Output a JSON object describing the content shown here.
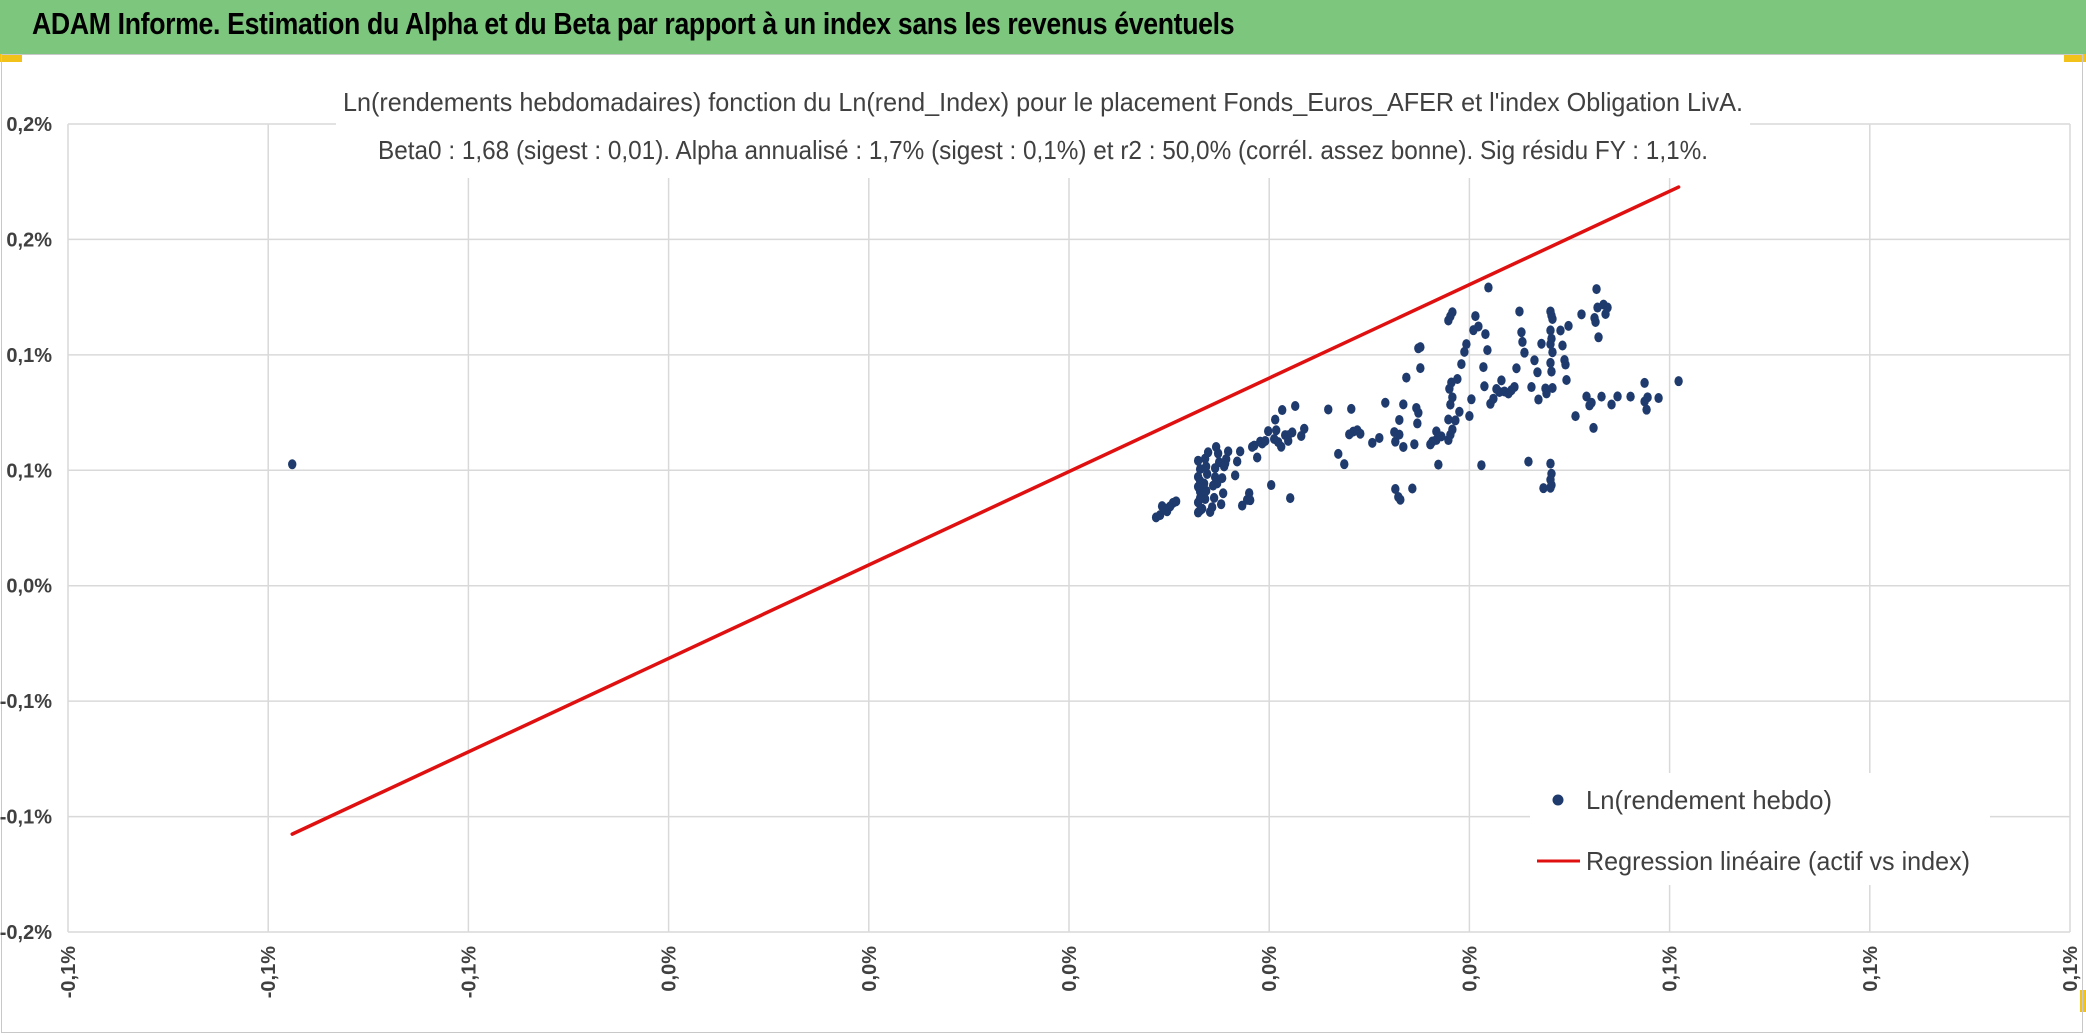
{
  "header": {
    "title": "ADAM Informe. Estimation du Alpha et du Beta par rapport à un index sans les revenus éventuels"
  },
  "colors": {
    "header_bg": "#7dc67e",
    "points": "#1f3b6e",
    "line": "#e01010",
    "grid": "#d9d9d9"
  },
  "chart_data": {
    "type": "scatter",
    "title": "Ln(rendements hebdomadaires) fonction du Ln(rend_Index) pour le placement Fonds_Euros_AFER et l'index Obligation LivA.",
    "subtitle": "Beta0 : 1,68 (sigest : 0,01). Alpha annualisé : 1,7% (sigest : 0,1%) et r2 : 50,0% (corrél. assez bonne). Sig résidu FY : 1,1%.",
    "xlabel": "",
    "ylabel": "",
    "xlim": [
      -0.1,
      0.1
    ],
    "ylim": [
      -0.3,
      0.4
    ],
    "x_tick_labels": [
      "-0,1%",
      "-0,1%",
      "-0,1%",
      "0,0%",
      "0,0%",
      "0,0%",
      "0,0%",
      "0,0%",
      "0,1%",
      "0,1%",
      "0,1%"
    ],
    "y_tick_labels": [
      "0,2%",
      "0,2%",
      "0,1%",
      "0,1%",
      "0,0%",
      "-0,1%",
      "-0,1%",
      "-0,2%"
    ],
    "grid": true,
    "legend_position": "bottom-right",
    "series": [
      {
        "name": "Ln(rendement hebdo)",
        "kind": "scatter",
        "points": [
          [
            -0.0776,
            0.1052
          ],
          [
            0.0087,
            0.0592
          ],
          [
            0.0091,
            0.0612
          ],
          [
            0.0093,
            0.0689
          ],
          [
            0.0096,
            0.0669
          ],
          [
            0.0098,
            0.0645
          ],
          [
            0.0101,
            0.0687
          ],
          [
            0.0104,
            0.0718
          ],
          [
            0.0107,
            0.0731
          ],
          [
            0.0129,
            0.0634
          ],
          [
            0.0131,
            0.0653
          ],
          [
            0.0129,
            0.0722
          ],
          [
            0.0131,
            0.0814
          ],
          [
            0.0129,
            0.0857
          ],
          [
            0.0131,
            0.0908
          ],
          [
            0.0129,
            0.0943
          ],
          [
            0.0131,
            0.101
          ],
          [
            0.0129,
            0.1083
          ],
          [
            0.0131,
            0.076
          ],
          [
            0.0133,
            0.0667
          ],
          [
            0.0136,
            0.0751
          ],
          [
            0.0137,
            0.0822
          ],
          [
            0.0135,
            0.0885
          ],
          [
            0.0138,
            0.0968
          ],
          [
            0.0136,
            0.1101
          ],
          [
            0.0139,
            0.1156
          ],
          [
            0.0137,
            0.1033
          ],
          [
            0.0141,
            0.0639
          ],
          [
            0.0143,
            0.068
          ],
          [
            0.0145,
            0.0761
          ],
          [
            0.0144,
            0.0867
          ],
          [
            0.0146,
            0.094
          ],
          [
            0.0148,
            0.0887
          ],
          [
            0.0146,
            0.1019
          ],
          [
            0.0149,
            0.1146
          ],
          [
            0.0147,
            0.1202
          ],
          [
            0.015,
            0.107
          ],
          [
            0.0152,
            0.0706
          ],
          [
            0.0154,
            0.0801
          ],
          [
            0.0153,
            0.0932
          ],
          [
            0.0155,
            0.1034
          ],
          [
            0.0157,
            0.1097
          ],
          [
            0.0159,
            0.1164
          ],
          [
            0.0156,
            0.106
          ],
          [
            0.0166,
            0.0956
          ],
          [
            0.0168,
            0.1076
          ],
          [
            0.0171,
            0.1164
          ],
          [
            0.0173,
            0.0694
          ],
          [
            0.0178,
            0.0744
          ],
          [
            0.0181,
            0.0741
          ],
          [
            0.018,
            0.0802
          ],
          [
            0.0183,
            0.1203
          ],
          [
            0.0185,
            0.1214
          ],
          [
            0.0188,
            0.1111
          ],
          [
            0.0191,
            0.1248
          ],
          [
            0.0193,
            0.1232
          ],
          [
            0.0196,
            0.1254
          ],
          [
            0.0199,
            0.1339
          ],
          [
            0.0202,
            0.0872
          ],
          [
            0.0205,
            0.1271
          ],
          [
            0.0206,
            0.1439
          ],
          [
            0.0207,
            0.1347
          ],
          [
            0.0209,
            0.1244
          ],
          [
            0.0212,
            0.1204
          ],
          [
            0.0213,
            0.1522
          ],
          [
            0.0216,
            0.1305
          ],
          [
            0.0219,
            0.1303
          ],
          [
            0.0221,
            0.0759
          ],
          [
            0.0219,
            0.1255
          ],
          [
            0.0223,
            0.1328
          ],
          [
            0.0226,
            0.1557
          ],
          [
            0.0232,
            0.1297
          ],
          [
            0.0235,
            0.136
          ],
          [
            0.0259,
            0.1527
          ],
          [
            0.0269,
            0.1142
          ],
          [
            0.0275,
            0.1053
          ],
          [
            0.028,
            0.1311
          ],
          [
            0.0282,
            0.1532
          ],
          [
            0.0284,
            0.1335
          ],
          [
            0.0288,
            0.1347
          ],
          [
            0.0291,
            0.1317
          ],
          [
            0.0303,
            0.1238
          ],
          [
            0.031,
            0.128
          ],
          [
            0.0316,
            0.1585
          ],
          [
            0.0325,
            0.1331
          ],
          [
            0.033,
            0.1436
          ],
          [
            0.0334,
            0.1202
          ],
          [
            0.0326,
            0.0838
          ],
          [
            0.0329,
            0.0769
          ],
          [
            0.0331,
            0.0745
          ],
          [
            0.0326,
            0.1248
          ],
          [
            0.033,
            0.1309
          ],
          [
            0.0334,
            0.1571
          ],
          [
            0.0337,
            0.1803
          ],
          [
            0.0343,
            0.0842
          ],
          [
            0.0345,
            0.1226
          ],
          [
            0.0348,
            0.1406
          ],
          [
            0.0349,
            0.1498
          ],
          [
            0.0347,
            0.154
          ],
          [
            0.0351,
            0.1885
          ],
          [
            0.0349,
            0.2057
          ],
          [
            0.0351,
            0.2067
          ],
          [
            0.0361,
            0.1224
          ],
          [
            0.0363,
            0.1249
          ],
          [
            0.0367,
            0.1337
          ],
          [
            0.0369,
            0.1049
          ],
          [
            0.0367,
            0.1263
          ],
          [
            0.0372,
            0.1294
          ],
          [
            0.0379,
            0.1262
          ],
          [
            0.0381,
            0.1308
          ],
          [
            0.0383,
            0.1353
          ],
          [
            0.0379,
            0.144
          ],
          [
            0.0381,
            0.1569
          ],
          [
            0.0383,
            0.1632
          ],
          [
            0.038,
            0.1706
          ],
          [
            0.0382,
            0.176
          ],
          [
            0.0379,
            0.2298
          ],
          [
            0.0381,
            0.2334
          ],
          [
            0.0383,
            0.2369
          ],
          [
            0.0386,
            0.1432
          ],
          [
            0.0388,
            0.1791
          ],
          [
            0.039,
            0.1507
          ],
          [
            0.0392,
            0.192
          ],
          [
            0.0395,
            0.2026
          ],
          [
            0.0397,
            0.2093
          ],
          [
            0.04,
            0.147
          ],
          [
            0.0402,
            0.1615
          ],
          [
            0.0404,
            0.2214
          ],
          [
            0.0406,
            0.2336
          ],
          [
            0.0409,
            0.2246
          ],
          [
            0.0412,
            0.1044
          ],
          [
            0.0415,
            0.1728
          ],
          [
            0.0414,
            0.1894
          ],
          [
            0.0418,
            0.2041
          ],
          [
            0.0416,
            0.218
          ],
          [
            0.0419,
            0.2583
          ],
          [
            0.0421,
            0.1576
          ],
          [
            0.0424,
            0.162
          ],
          [
            0.0427,
            0.1704
          ],
          [
            0.043,
            0.1678
          ],
          [
            0.0432,
            0.1779
          ],
          [
            0.0435,
            0.1683
          ],
          [
            0.0439,
            0.1665
          ],
          [
            0.0442,
            0.1694
          ],
          [
            0.0445,
            0.1722
          ],
          [
            0.0447,
            0.1884
          ],
          [
            0.045,
            0.2376
          ],
          [
            0.0452,
            0.2196
          ],
          [
            0.0453,
            0.2112
          ],
          [
            0.0455,
            0.2019
          ],
          [
            0.0459,
            0.1075
          ],
          [
            0.0462,
            0.1721
          ],
          [
            0.0465,
            0.1953
          ],
          [
            0.0468,
            0.1849
          ],
          [
            0.0469,
            0.1613
          ],
          [
            0.0472,
            0.2096
          ],
          [
            0.0474,
            0.0845
          ],
          [
            0.0476,
            0.1709
          ],
          [
            0.0477,
            0.1666
          ],
          [
            0.0481,
            0.0849
          ],
          [
            0.0482,
            0.0872
          ],
          [
            0.0481,
            0.0918
          ],
          [
            0.0482,
            0.097
          ],
          [
            0.0481,
            0.1058
          ],
          [
            0.0483,
            0.1713
          ],
          [
            0.0482,
            0.1855
          ],
          [
            0.0481,
            0.193
          ],
          [
            0.0483,
            0.2023
          ],
          [
            0.0481,
            0.2093
          ],
          [
            0.0482,
            0.214
          ],
          [
            0.0481,
            0.2212
          ],
          [
            0.0483,
            0.2311
          ],
          [
            0.0482,
            0.2341
          ],
          [
            0.0481,
            0.2376
          ],
          [
            0.0491,
            0.2211
          ],
          [
            0.0493,
            0.2081
          ],
          [
            0.0495,
            0.1955
          ],
          [
            0.0497,
            0.1782
          ],
          [
            0.0496,
            0.1916
          ],
          [
            0.0499,
            0.2251
          ],
          [
            0.0506,
            0.1469
          ],
          [
            0.0512,
            0.2351
          ],
          [
            0.0517,
            0.1639
          ],
          [
            0.052,
            0.1562
          ],
          [
            0.0522,
            0.1585
          ],
          [
            0.0524,
            0.1367
          ],
          [
            0.0525,
            0.2319
          ],
          [
            0.0526,
            0.2285
          ],
          [
            0.0528,
            0.241
          ],
          [
            0.0527,
            0.257
          ],
          [
            0.0529,
            0.2152
          ],
          [
            0.0532,
            0.1638
          ],
          [
            0.0534,
            0.2435
          ],
          [
            0.0536,
            0.2354
          ],
          [
            0.0538,
            0.241
          ],
          [
            0.0542,
            0.157
          ],
          [
            0.0548,
            0.164
          ],
          [
            0.0561,
            0.1638
          ],
          [
            0.0575,
            0.1596
          ],
          [
            0.0577,
            0.1525
          ],
          [
            0.0578,
            0.1632
          ],
          [
            0.0575,
            0.1757
          ],
          [
            0.0589,
            0.1626
          ],
          [
            0.0609,
            0.1772
          ]
        ]
      },
      {
        "name": "Regression linéaire (actif vs index)",
        "kind": "line",
        "points": [
          [
            -0.0776,
            -0.2152
          ],
          [
            0.0609,
            0.3454
          ]
        ]
      }
    ]
  }
}
